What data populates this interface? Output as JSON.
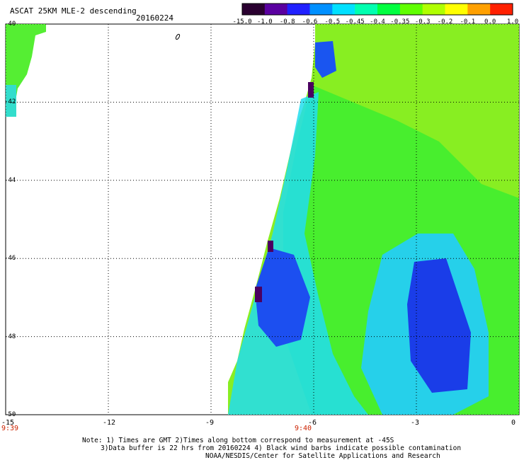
{
  "header": {
    "title": "ASCAT 25KM MLE-2 descending",
    "date": "20160224"
  },
  "colorbar": {
    "labels": [
      "-15.0",
      "-1.0",
      "-0.8",
      "-0.6",
      "-0.5",
      "-0.45",
      "-0.4",
      "-0.35",
      "-0.3",
      "-0.2",
      "-0.1",
      "0.0",
      "1.0"
    ],
    "colors": [
      "#2a0030",
      "#5a00a0",
      "#2020ff",
      "#0090ff",
      "#00e0ff",
      "#00ffb0",
      "#00ff40",
      "#60ff00",
      "#b0ff00",
      "#ffff00",
      "#ffa000",
      "#ff2000"
    ]
  },
  "axes": {
    "lat_labels": [
      "-40",
      "-42",
      "-44",
      "-46",
      "-48",
      "-50"
    ],
    "lon_labels": [
      "-15",
      "-12",
      "-9",
      "-6",
      "-3",
      "0"
    ],
    "time_labels": [
      "9:39",
      "9:40"
    ]
  },
  "map_data": {
    "lon_range": [
      -15,
      0
    ],
    "lat_range": [
      -50,
      -40
    ],
    "gridlines": true
  },
  "notes": {
    "line1": "Note: 1) Times are GMT 2)Times along bottom correspond to measurement at -45S",
    "line2": "3)Data buffer is 22 hrs from 20160224 4) Black wind barbs indicate possible contamination",
    "line3": "NOAA/NESDIS/Center for Satellite Applications and Research"
  }
}
